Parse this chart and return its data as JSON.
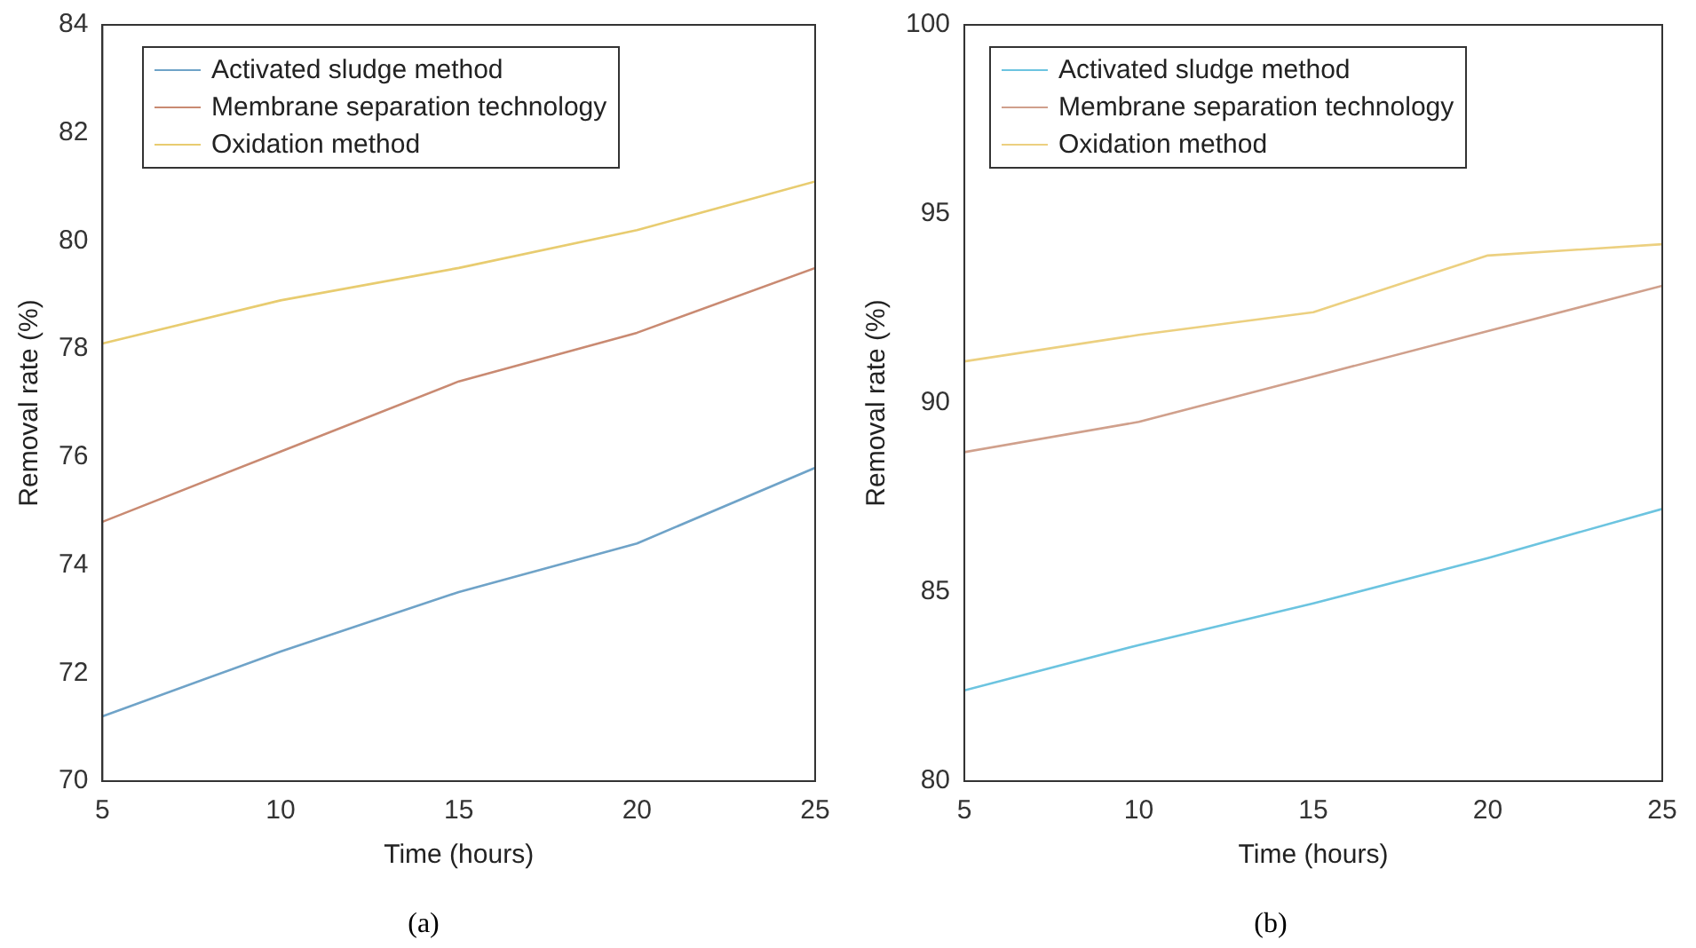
{
  "chart_data": [
    {
      "type": "line",
      "x": [
        5,
        10,
        15,
        20,
        25
      ],
      "xlabel": "Time (hours)",
      "ylabel": "Removal rate (%)",
      "xlim": [
        5,
        25
      ],
      "xticks": [
        5,
        10,
        15,
        20,
        25
      ],
      "ylim": [
        70,
        84
      ],
      "yticks": [
        70,
        72,
        74,
        76,
        78,
        80,
        82,
        84
      ],
      "legend": "top left",
      "grid": false,
      "annotations": [
        "(a)"
      ],
      "series": [
        {
          "name": "Activated sludge method",
          "color": "#6fa3c8",
          "values": [
            71.2,
            72.4,
            73.5,
            74.4,
            75.8
          ]
        },
        {
          "name": "Membrane separation technology",
          "color": "#c98a72",
          "values": [
            74.8,
            76.1,
            77.4,
            78.3,
            79.5
          ]
        },
        {
          "name": "Oxidation method",
          "color": "#e8cc70",
          "values": [
            78.1,
            78.9,
            79.5,
            80.2,
            81.1
          ]
        }
      ]
    },
    {
      "type": "line",
      "x": [
        5,
        10,
        15,
        20,
        25
      ],
      "xlabel": "Time (hours)",
      "ylabel": "Removal rate (%)",
      "xlim": [
        5,
        25
      ],
      "xticks": [
        5,
        10,
        15,
        20,
        25
      ],
      "ylim": [
        80,
        100
      ],
      "yticks": [
        80,
        85,
        90,
        95,
        100
      ],
      "legend": "top left",
      "grid": false,
      "annotations": [
        "(b)"
      ],
      "series": [
        {
          "name": "Activated sludge method",
          "color": "#6cc4e0",
          "values": [
            82.4,
            83.6,
            84.7,
            85.9,
            87.2
          ]
        },
        {
          "name": "Membrane separation technology",
          "color": "#d0a08c",
          "values": [
            88.7,
            89.5,
            90.7,
            91.9,
            93.1
          ]
        },
        {
          "name": "Oxidation method",
          "color": "#ecd080",
          "values": [
            91.1,
            91.8,
            92.4,
            93.9,
            94.2
          ]
        }
      ]
    }
  ]
}
